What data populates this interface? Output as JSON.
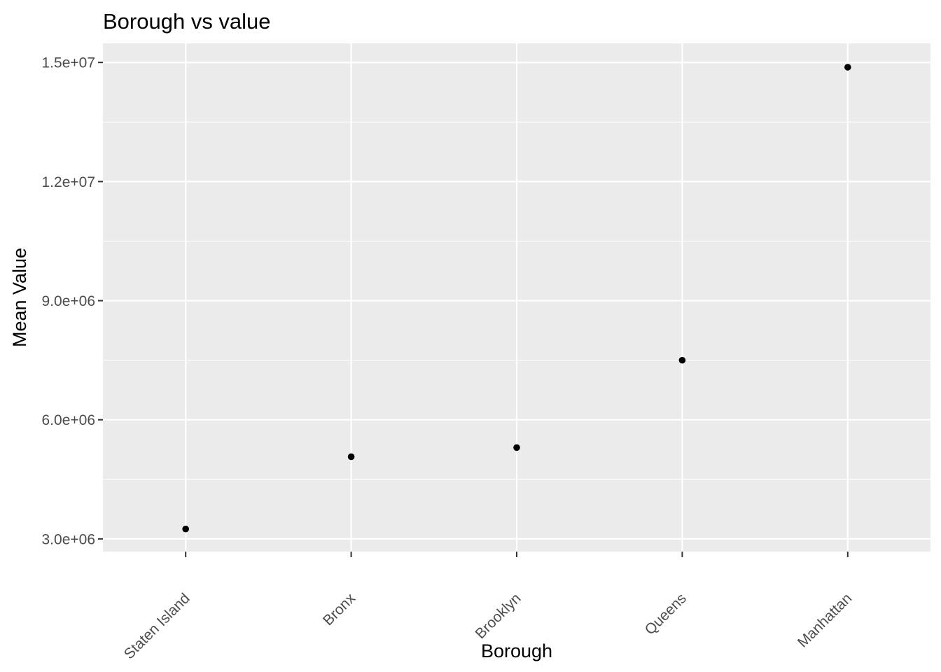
{
  "chart_data": {
    "type": "scatter",
    "title": "Borough vs value",
    "xlabel": "Borough",
    "ylabel": "Mean Value",
    "categories": [
      "Staten Island",
      "Bronx",
      "Brooklyn",
      "Queens",
      "Manhattan"
    ],
    "series": [
      {
        "values": [
          3250000,
          5070000,
          5300000,
          7500000,
          14880000
        ]
      }
    ],
    "yticks": [
      3000000,
      6000000,
      9000000,
      12000000,
      15000000
    ],
    "ytick_labels": [
      "3.0e+06",
      "6.0e+06",
      "9.0e+06",
      "1.2e+07",
      "1.5e+07"
    ],
    "ylim": [
      2680000,
      15480000
    ],
    "grid": true,
    "legend": "none",
    "colors": {
      "panel_background": "#EBEBEB",
      "grid": "#FFFFFF",
      "point": "#000000",
      "tick_text": "#4D4D4D",
      "tick_mark": "#333333"
    }
  }
}
